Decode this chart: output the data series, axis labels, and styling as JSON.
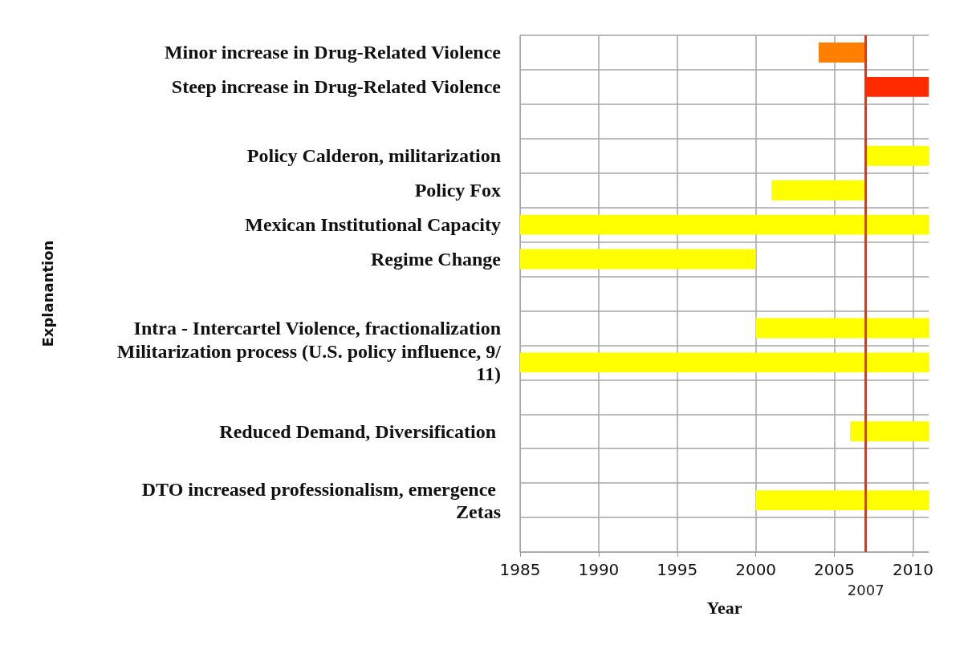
{
  "chart_data": {
    "type": "bar",
    "orientation": "horizontal",
    "xlabel": "Year",
    "ylabel": "Explanantion",
    "categories": [
      "Minor increase in Drug-Related Violence",
      "Steep increase in Drug-Related Violence",
      null,
      "Policy Calderon, militarization",
      "Policy Fox",
      "Mexican Institutional Capacity",
      "Regime Change",
      null,
      "Intra - Intercartel Violence, fractionalization",
      "Militarization process (U.S. policy influence, 9/11)",
      null,
      "Reduced Demand, Diversification ",
      null,
      "DTO increased professionalism, emergence Zetas",
      null
    ],
    "base": [
      2004,
      2007,
      null,
      2007,
      2001,
      1985,
      1985,
      null,
      2000,
      1985,
      null,
      2006,
      null,
      2000,
      null
    ],
    "values": [
      3,
      4,
      null,
      4,
      6,
      26,
      15,
      null,
      11,
      26,
      null,
      5,
      null,
      11,
      null
    ],
    "colors": [
      "#ff7f00",
      "#ff2a00",
      null,
      "#ffff00",
      "#ffff00",
      "#ffff00",
      "#ffff00",
      null,
      "#ffff00",
      "#ffff00",
      null,
      "#ffff00",
      null,
      "#ffff00",
      null
    ],
    "xlim": [
      1985,
      2011
    ],
    "xticks": [
      1985,
      1990,
      1995,
      2000,
      2005,
      2010
    ],
    "ref_lines": [
      {
        "axis": "x",
        "value": 2007,
        "label": "2007",
        "color": "#ff2a00"
      }
    ],
    "grid": true
  }
}
